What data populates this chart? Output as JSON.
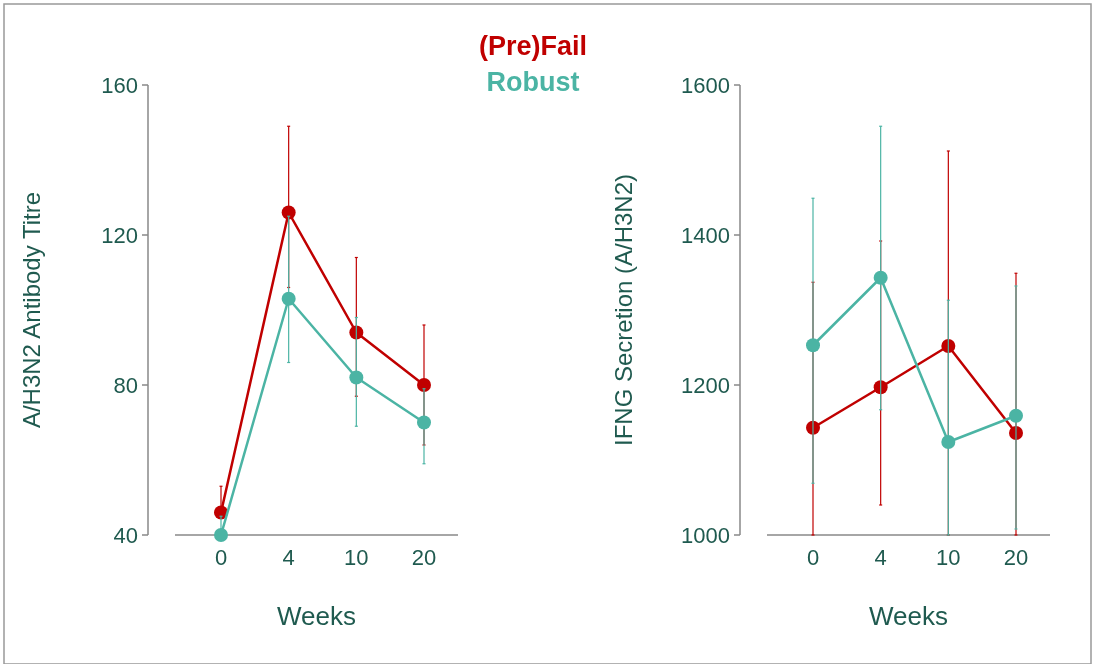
{
  "chart_data": [
    {
      "type": "line",
      "ylabel": "A/H3N2 Antibody Titre",
      "xlabel": "Weeks",
      "categories": [
        "0",
        "4",
        "10",
        "20"
      ],
      "ylim": [
        40,
        160
      ],
      "yticks": [
        40,
        80,
        120,
        160
      ],
      "marker": "circle",
      "legend": "top",
      "series": [
        {
          "name": "(Pre)Fail",
          "color": "#c00000",
          "values": [
            46,
            126,
            94,
            80
          ],
          "errors": [
            [
              46,
              53
            ],
            [
              106,
              149
            ],
            [
              77,
              114
            ],
            [
              64,
              96
            ]
          ]
        },
        {
          "name": "Robust",
          "color": "#4bb4a4",
          "values": [
            40,
            103,
            82,
            70
          ],
          "errors": [
            [
              40,
              45
            ],
            [
              86,
              125
            ],
            [
              69,
              98
            ],
            [
              59,
              79
            ]
          ]
        }
      ]
    },
    {
      "type": "line",
      "ylabel": "IFNG Secretion (A/H3N2)",
      "xlabel": "Weeks",
      "categories": [
        "0",
        "4",
        "10",
        "20"
      ],
      "ylim": [
        1000,
        1600
      ],
      "yticks": [
        1000,
        1200,
        1400,
        1600
      ],
      "marker": "circle",
      "series": [
        {
          "color": "#c00000",
          "values": [
            1143,
            1197,
            1252,
            1136
          ],
          "errors": [
            [
              1000,
              1337
            ],
            [
              1040,
              1392
            ],
            [
              1000,
              1512
            ],
            [
              1000,
              1349
            ]
          ]
        },
        {
          "color": "#4bb4a4",
          "values": [
            1253,
            1343,
            1124,
            1159
          ],
          "errors": [
            [
              1069,
              1449
            ],
            [
              1167,
              1545
            ],
            [
              1000,
              1313
            ],
            [
              1008,
              1332
            ]
          ]
        }
      ]
    }
  ]
}
